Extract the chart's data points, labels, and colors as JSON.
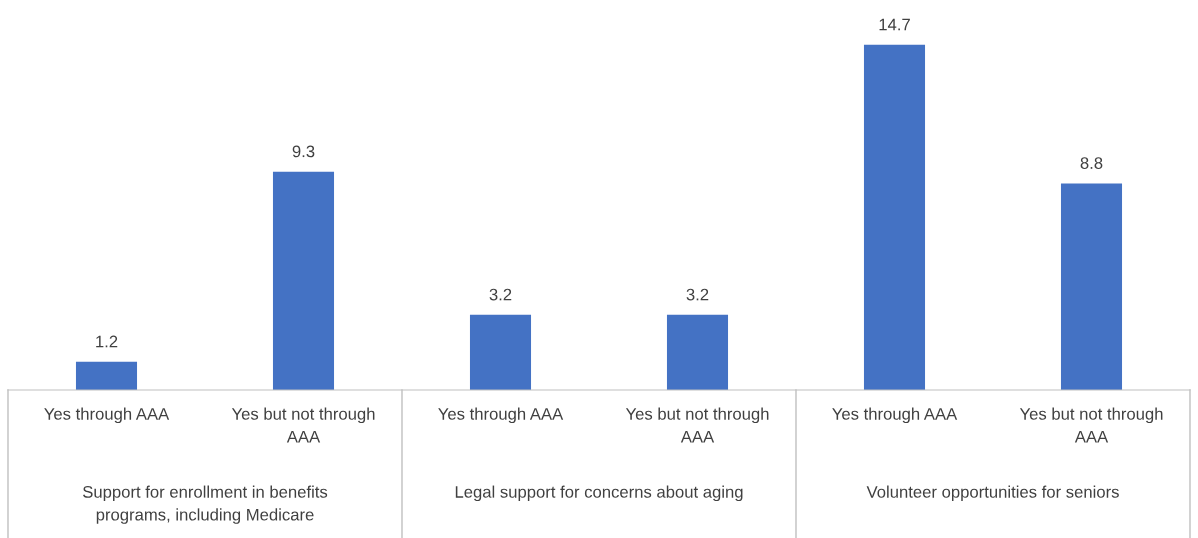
{
  "chart_data": {
    "type": "bar",
    "categories": [
      "Yes through AAA",
      "Yes but not through AAA",
      "Yes through AAA",
      "Yes but not through AAA",
      "Yes through AAA",
      "Yes but not through AAA"
    ],
    "values": [
      1.2,
      9.3,
      3.2,
      3.2,
      14.7,
      8.8
    ],
    "color": "#4472c4",
    "data_labels": true,
    "annotations": [
      "Support for enrollment in benefits programs, including Medicare",
      "Legal support for concerns about aging",
      "Volunteer opportunities for seniors"
    ]
  }
}
